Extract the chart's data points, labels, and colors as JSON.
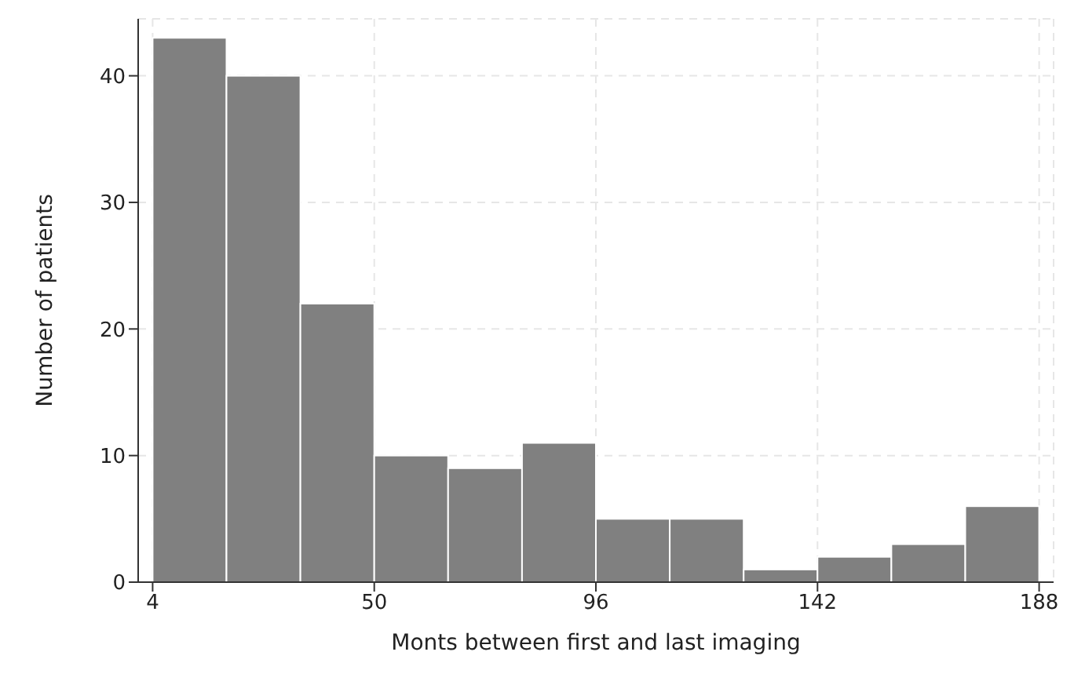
{
  "chart_data": {
    "type": "histogram",
    "xlabel": "Monts between first and last imaging",
    "ylabel": "Number of patients",
    "bins": [
      4,
      19.33,
      34.67,
      50,
      65.33,
      80.67,
      96,
      111.33,
      126.67,
      142,
      157.33,
      172.67,
      188
    ],
    "values": [
      43,
      40,
      22,
      10,
      9,
      11,
      5,
      5,
      1,
      2,
      3,
      6
    ],
    "color": "#808080",
    "xlim": [
      1,
      191
    ],
    "xticks": [
      4,
      50,
      96,
      142,
      188
    ],
    "ylim": [
      0,
      44.5
    ],
    "yticks": [
      0,
      10,
      20,
      30,
      40
    ],
    "grid": true
  }
}
